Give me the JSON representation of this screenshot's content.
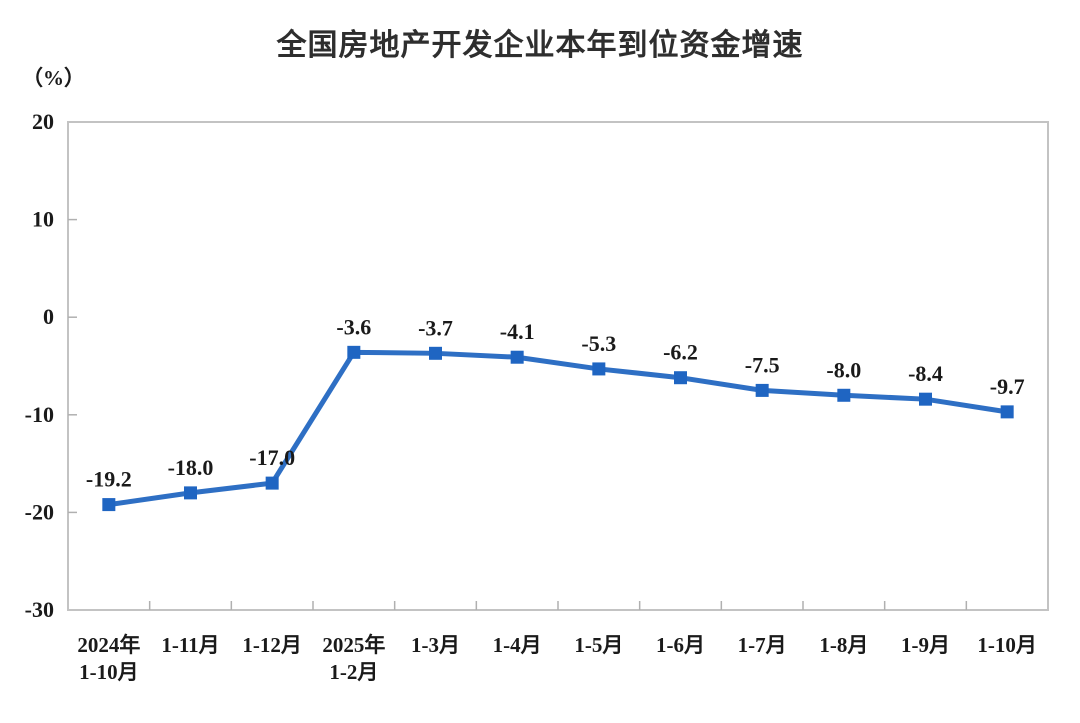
{
  "chart_data": {
    "type": "line",
    "title": "全国房地产开发企业本年到位资金增速",
    "ylabel": "（%）",
    "xlabel": "",
    "ylim": [
      -30,
      20
    ],
    "yticks": [
      "20",
      "10",
      "0",
      "-10",
      "-20",
      "-30"
    ],
    "ytick_values": [
      20,
      10,
      0,
      -10,
      -20,
      -30
    ],
    "grid": false,
    "legend_position": "none",
    "marker_shape": "square",
    "categories": [
      "2024年\n1-10月",
      "1-11月",
      "1-12月",
      "2025年\n1-2月",
      "1-3月",
      "1-4月",
      "1-5月",
      "1-6月",
      "1-7月",
      "1-8月",
      "1-9月",
      "1-10月"
    ],
    "values": [
      -19.2,
      -18.0,
      -17.0,
      -3.6,
      -3.7,
      -4.1,
      -5.3,
      -6.2,
      -7.5,
      -8.0,
      -8.4,
      -9.7
    ],
    "point_labels": [
      "-19.2",
      "-18.0",
      "-17.0",
      "-3.6",
      "-3.7",
      "-4.1",
      "-5.3",
      "-6.2",
      "-7.5",
      "-8.0",
      "-8.4",
      "-9.7"
    ],
    "colors": {
      "line": "#2e6fc4",
      "marker": "#1f65c2",
      "axis_border": "#c3c3c3",
      "tick": "#b0b0b0",
      "text": "#1a1a1a",
      "background": "#ffffff"
    }
  }
}
